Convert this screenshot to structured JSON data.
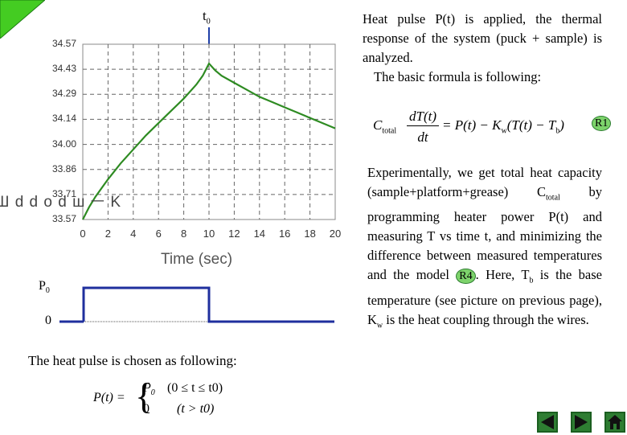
{
  "t0_label": "t",
  "t0_sub": "0",
  "chart_data": {
    "type": "line",
    "xlabel": "Time (sec)",
    "x_ticks": [
      "0",
      "2",
      "4",
      "6",
      "8",
      "10",
      "12",
      "14",
      "16",
      "18",
      "20"
    ],
    "y_ticks": [
      "34.57",
      "34.43",
      "34.29",
      "34.14",
      "34.00",
      "33.86",
      "33.71",
      "33.57"
    ],
    "xlim": [
      0,
      20
    ],
    "ylim": [
      33.57,
      34.57
    ],
    "grid": true,
    "series": [
      {
        "x": [
          0,
          0.5,
          1,
          2,
          3,
          4,
          5,
          6,
          7,
          8,
          9,
          9.5,
          10,
          10.5,
          11,
          12,
          13,
          14,
          15,
          16,
          17,
          18,
          19,
          20
        ],
        "y": [
          33.57,
          33.64,
          33.7,
          33.8,
          33.89,
          33.97,
          34.05,
          34.12,
          34.19,
          34.26,
          34.34,
          34.39,
          34.46,
          34.42,
          34.39,
          34.35,
          34.31,
          34.27,
          34.24,
          34.21,
          34.18,
          34.15,
          34.12,
          34.09
        ]
      }
    ],
    "ylabel_glyphs": "Ш d d o d ш ㅡ K"
  },
  "pulse": {
    "p0_label": "P",
    "p0_sub": "0",
    "zero_label": "0"
  },
  "pulse_caption": "The heat pulse is chosen as following:",
  "pulse_formula": {
    "lhs": "P(t) =",
    "case1_value": "P",
    "case1_sub": "0",
    "case1_cond": "(0 ≤ t ≤ t0)",
    "case2_value": "0",
    "case2_cond": "(t > t0)"
  },
  "intro": {
    "line1": "Heat pulse P(t) is applied, the thermal response of the system (puck + sample) is analyzed.",
    "line2": "The basic formula is following:"
  },
  "formula_r1": {
    "text": "C_total dT(t)/dt = P(t) − K_w (T(t) − T_b)",
    "ref": "R1"
  },
  "para2": {
    "part1": "Experimentally, we get total heat capacity (sample+platform+grease) C",
    "ctotal_sub": "total",
    "part2": " by programming heater power P(t) and measuring T vs time t, and minimizing the difference between measured temperatures and the model ",
    "ref": "R4",
    "part3": ". Here, T",
    "tb_sub": "b",
    "part4": " is the base temperature (see picture on previous page), K",
    "kw_sub": "w",
    "part5": " is the heat coupling through the wires."
  },
  "colors": {
    "curve": "#2e8b22",
    "pulse": "#1f2f9e",
    "arrow": "#1f3fa8",
    "nav": "#2e7d32",
    "corner": "#44cc22"
  }
}
